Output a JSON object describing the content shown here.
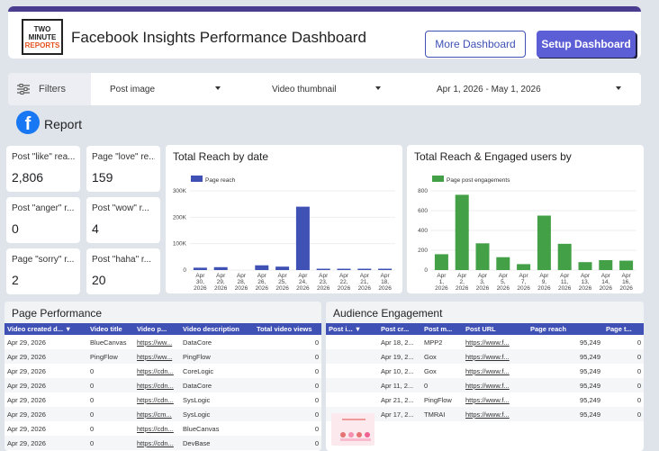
{
  "header": {
    "logo_lines": [
      "TWO",
      "MINUTE",
      "REPORTS"
    ],
    "title": "Facebook Insights Performance Dashboard",
    "more_button": "More Dashboard",
    "setup_button": "Setup Dashboard",
    "stripe_color": "#4a3d8f"
  },
  "filters": {
    "label": "Filters",
    "post_image": "Post image",
    "video_thumbnail": "Video thumbnail",
    "date_range": "Apr 1, 2026 - May 1, 2026"
  },
  "report_label": "Report",
  "kpis": [
    {
      "label": "Post \"like\" rea...",
      "value": "2,806"
    },
    {
      "label": "Page \"love\" re...",
      "value": "159"
    },
    {
      "label": "Post \"anger\" r...",
      "value": "0"
    },
    {
      "label": "Post \"wow\" r...",
      "value": "4"
    },
    {
      "label": "Page \"sorry\" r...",
      "value": "2"
    },
    {
      "label": "Post \"haha\" r...",
      "value": "20"
    }
  ],
  "reach_chart": {
    "title": "Total Reach by date",
    "chart_data": {
      "type": "bar",
      "legend": "Page reach",
      "color": "#3f51b5",
      "categories": [
        [
          "Apr",
          "30,",
          "2026"
        ],
        [
          "Apr",
          "29,",
          "2026"
        ],
        [
          "Apr",
          "28,",
          "2026"
        ],
        [
          "Apr",
          "26,",
          "2026"
        ],
        [
          "Apr",
          "25,",
          "2026"
        ],
        [
          "Apr",
          "24,",
          "2026"
        ],
        [
          "Apr",
          "23,",
          "2026"
        ],
        [
          "Apr",
          "22,",
          "2026"
        ],
        [
          "Apr",
          "21,",
          "2026"
        ],
        [
          "Apr",
          "18,",
          "2026"
        ]
      ],
      "values": [
        9000,
        11000,
        0,
        18000,
        13000,
        240000,
        2000,
        4000,
        1000,
        500
      ],
      "yticks": [
        "0",
        "100K",
        "200K",
        "300K"
      ],
      "ylim": [
        0,
        300000
      ]
    }
  },
  "engaged_chart": {
    "title": "Total Reach & Engaged users by",
    "chart_data": {
      "type": "bar",
      "legend": "Page post engagements",
      "color": "#43a047",
      "categories": [
        [
          "Apr",
          "1,",
          "2026"
        ],
        [
          "Apr",
          "2,",
          "2026"
        ],
        [
          "Apr",
          "3,",
          "2026"
        ],
        [
          "Apr",
          "5,",
          "2026"
        ],
        [
          "Apr",
          "7,",
          "2026"
        ],
        [
          "Apr",
          "9,",
          "2026"
        ],
        [
          "Apr",
          "11,",
          "2026"
        ],
        [
          "Apr",
          "13,",
          "2026"
        ],
        [
          "Apr",
          "14,",
          "2026"
        ],
        [
          "Apr",
          "16,",
          "2026"
        ]
      ],
      "values": [
        160,
        760,
        270,
        130,
        60,
        550,
        265,
        80,
        100,
        95
      ],
      "yticks": [
        "0",
        "200",
        "400",
        "600",
        "800"
      ],
      "ylim": [
        0,
        800
      ]
    }
  },
  "page_performance": {
    "title": "Page Performance",
    "columns": [
      "Video created d... ▼",
      "Video title",
      "Video p...",
      "Video description",
      "Total video views"
    ],
    "rows": [
      [
        "Apr 29, 2026",
        "BlueCanvas",
        "https://ww...",
        "DataCore",
        "0"
      ],
      [
        "Apr 29, 2026",
        "PingFlow",
        "https://ww...",
        "PingFlow",
        "0"
      ],
      [
        "Apr 29, 2026",
        "0",
        "https://cdn...",
        "CoreLogic",
        "0"
      ],
      [
        "Apr 29, 2026",
        "0",
        "https://cdn...",
        "DataCore",
        "0"
      ],
      [
        "Apr 29, 2026",
        "0",
        "https://cdn...",
        "SysLogic",
        "0"
      ],
      [
        "Apr 29, 2026",
        "0",
        "https://cm...",
        "SysLogic",
        "0"
      ],
      [
        "Apr 29, 2026",
        "0",
        "https://cdn...",
        "BlueCanvas",
        "0"
      ],
      [
        "Apr 29, 2026",
        "0",
        "https://cdn...",
        "DevBase",
        "0"
      ]
    ]
  },
  "audience": {
    "title": "Audience Engagement",
    "columns": [
      "Post i... ▼",
      "Post cr...",
      "Post m...",
      "Post URL",
      "Page reach",
      "Page t..."
    ],
    "rows": [
      [
        "",
        "Apr 18, 2...",
        "MPP2",
        "https://www.f...",
        "95,249",
        "0"
      ],
      [
        "",
        "Apr 19, 2...",
        "Gox",
        "https://www.f...",
        "95,249",
        "0"
      ],
      [
        "",
        "Apr 10, 2...",
        "Gox",
        "https://www.f...",
        "95,249",
        "0"
      ],
      [
        "",
        "Apr 11, 2...",
        "0",
        "https://www.f...",
        "95,249",
        "0"
      ],
      [
        "",
        "Apr 21, 2...",
        "PingFlow",
        "https://www.f...",
        "95,249",
        "0"
      ],
      [
        "",
        "Apr 17, 2...",
        "TMRAI",
        "https://www.f...",
        "95,249",
        "0"
      ]
    ]
  }
}
